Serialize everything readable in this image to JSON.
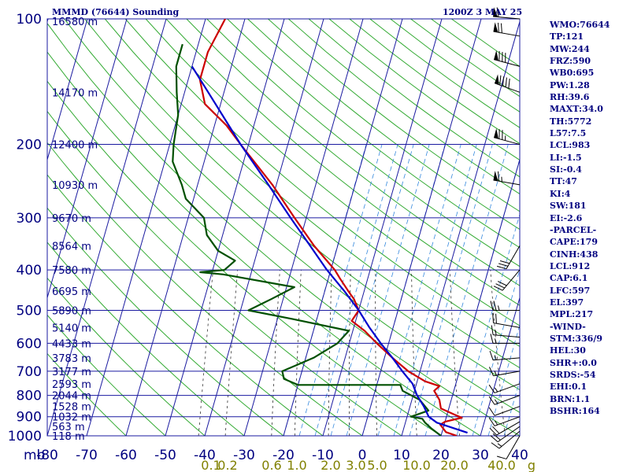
{
  "header": {
    "station_title": "MMMD (76644) Sounding",
    "valid_time": "1200Z  3 MAY 25"
  },
  "indices": [
    "WMO:76644",
    "TP:121",
    "MW:244",
    "FRZ:590",
    "WB0:695",
    "PW:1.28",
    "RH:39.6",
    "MAXT:34.0",
    "TH:5772",
    "L57:7.5",
    "LCL:983",
    "LI:-1.5",
    "SI:-0.4",
    "TT:47",
    "KI:4",
    "SW:181",
    "EI:-2.6",
    "-PARCEL-",
    "CAPE:179",
    "CINH:438",
    "LCL:912",
    "CAP:6.1",
    "LFC:597",
    "EL:397",
    "MPL:217",
    "-WIND-",
    "STM:336/9",
    "HEL:30",
    "SHR+:0.0",
    "SRDS:-54",
    "EHI:0.1",
    "BRN:1.1",
    "BSHR:164"
  ],
  "chart_data": {
    "type": "skew-t log-p",
    "pressure_label": "mb",
    "pressure_ticks": [
      100,
      200,
      300,
      400,
      500,
      600,
      700,
      800,
      900,
      1000
    ],
    "pressure_range": [
      100,
      1000
    ],
    "temperature_ticks": [
      -80,
      -70,
      -60,
      -50,
      -40,
      -30,
      -20,
      -10,
      0,
      10,
      20,
      30,
      40
    ],
    "temperature_range": [
      -80,
      40
    ],
    "mixing_ratio_labels": [
      "0.1",
      "0.2",
      "0.6",
      "1.0",
      "2.0",
      "3.0",
      "5.0",
      "10.0",
      "20.0",
      "40.0",
      "g"
    ],
    "height_labels": [
      {
        "p": 100,
        "label": "16580 m"
      },
      {
        "p": 150,
        "label": "14170 m"
      },
      {
        "p": 200,
        "label": "12400 m"
      },
      {
        "p": 250,
        "label": "10930 m"
      },
      {
        "p": 300,
        "label": "9670 m"
      },
      {
        "p": 350,
        "label": "8564 m"
      },
      {
        "p": 400,
        "label": "7580 m"
      },
      {
        "p": 450,
        "label": "6695 m"
      },
      {
        "p": 500,
        "label": "5890 m"
      },
      {
        "p": 550,
        "label": "5140 m"
      },
      {
        "p": 600,
        "label": "4433 m"
      },
      {
        "p": 650,
        "label": "3783 m"
      },
      {
        "p": 700,
        "label": "3177 m"
      },
      {
        "p": 750,
        "label": "2593 m"
      },
      {
        "p": 800,
        "label": "2044 m"
      },
      {
        "p": 850,
        "label": "1528 m"
      },
      {
        "p": 900,
        "label": "1032 m"
      },
      {
        "p": 950,
        "label": "563 m"
      },
      {
        "p": 1000,
        "label": "118 m"
      }
    ],
    "series": [
      {
        "role": "temperature",
        "color": "#cc0000",
        "points": [
          [
            1000,
            24
          ],
          [
            980,
            21
          ],
          [
            960,
            20
          ],
          [
            940,
            19
          ],
          [
            925,
            20
          ],
          [
            905,
            24
          ],
          [
            890,
            22
          ],
          [
            860,
            18
          ],
          [
            820,
            17
          ],
          [
            780,
            15
          ],
          [
            760,
            16
          ],
          [
            740,
            12
          ],
          [
            700,
            7
          ],
          [
            650,
            2
          ],
          [
            600,
            -3
          ],
          [
            560,
            -7
          ],
          [
            530,
            -11
          ],
          [
            500,
            -10
          ],
          [
            470,
            -12
          ],
          [
            450,
            -14
          ],
          [
            420,
            -17
          ],
          [
            400,
            -19
          ],
          [
            350,
            -26
          ],
          [
            300,
            -33
          ],
          [
            250,
            -41
          ],
          [
            200,
            -52
          ],
          [
            180,
            -57
          ],
          [
            160,
            -64
          ],
          [
            140,
            -67
          ],
          [
            120,
            -67
          ],
          [
            100,
            -65
          ]
        ]
      },
      {
        "role": "dewpoint",
        "color": "#005000",
        "points": [
          [
            1000,
            20
          ],
          [
            960,
            17
          ],
          [
            930,
            15
          ],
          [
            910,
            14
          ],
          [
            900,
            11
          ],
          [
            870,
            15
          ],
          [
            820,
            12
          ],
          [
            780,
            7
          ],
          [
            755,
            6
          ],
          [
            755,
            -20
          ],
          [
            730,
            -24
          ],
          [
            700,
            -25
          ],
          [
            650,
            -18
          ],
          [
            600,
            -13
          ],
          [
            560,
            -11
          ],
          [
            525,
            -26
          ],
          [
            500,
            -38
          ],
          [
            470,
            -33
          ],
          [
            440,
            -28
          ],
          [
            410,
            -47
          ],
          [
            405,
            -53
          ],
          [
            400,
            -47
          ],
          [
            380,
            -45
          ],
          [
            360,
            -50
          ],
          [
            330,
            -54
          ],
          [
            300,
            -56
          ],
          [
            270,
            -62
          ],
          [
            250,
            -64
          ],
          [
            220,
            -68
          ],
          [
            200,
            -69
          ],
          [
            170,
            -70
          ],
          [
            150,
            -72
          ],
          [
            130,
            -74
          ],
          [
            115,
            -74
          ]
        ]
      },
      {
        "role": "parcel",
        "color": "#0000cc",
        "points": [
          [
            983,
            26.5
          ],
          [
            930,
            18
          ],
          [
            900,
            15.5
          ],
          [
            850,
            13.5
          ],
          [
            800,
            11
          ],
          [
            750,
            9
          ],
          [
            700,
            5.5
          ],
          [
            650,
            2
          ],
          [
            600,
            -2
          ],
          [
            550,
            -6
          ],
          [
            500,
            -10
          ],
          [
            450,
            -15
          ],
          [
            400,
            -21
          ],
          [
            350,
            -27
          ],
          [
            300,
            -34
          ],
          [
            250,
            -42
          ],
          [
            200,
            -52
          ],
          [
            150,
            -64
          ],
          [
            130,
            -70
          ]
        ]
      }
    ],
    "wind_barbs": [
      {
        "p": 1000,
        "dir": 210,
        "spd": 10
      },
      {
        "p": 975,
        "dir": 230,
        "spd": 15
      },
      {
        "p": 950,
        "dir": 235,
        "spd": 20
      },
      {
        "p": 925,
        "dir": 240,
        "spd": 20
      },
      {
        "p": 900,
        "dir": 250,
        "spd": 15
      },
      {
        "p": 850,
        "dir": 250,
        "spd": 10
      },
      {
        "p": 800,
        "dir": 250,
        "spd": 15
      },
      {
        "p": 750,
        "dir": 250,
        "spd": 15
      },
      {
        "p": 700,
        "dir": 260,
        "spd": 15
      },
      {
        "p": 650,
        "dir": 265,
        "spd": 15
      },
      {
        "p": 600,
        "dir": 270,
        "spd": 15
      },
      {
        "p": 580,
        "dir": 275,
        "spd": 15
      },
      {
        "p": 550,
        "dir": 280,
        "spd": 20
      },
      {
        "p": 500,
        "dir": 270,
        "spd": 25
      },
      {
        "p": 400,
        "dir": 220,
        "spd": 30
      },
      {
        "p": 350,
        "dir": 210,
        "spd": 30
      },
      {
        "p": 250,
        "dir": 280,
        "spd": 65
      },
      {
        "p": 200,
        "dir": 285,
        "spd": 75
      },
      {
        "p": 150,
        "dir": 290,
        "spd": 90
      },
      {
        "p": 130,
        "dir": 285,
        "spd": 80
      },
      {
        "p": 110,
        "dir": 280,
        "spd": 70
      },
      {
        "p": 100,
        "dir": 275,
        "spd": 60
      }
    ],
    "colors": {
      "grid": "#1a1aa0",
      "dry_adiabat": "#33aa33",
      "moist_adiabat": "#3388dd",
      "mixing_ratio": "#333333",
      "labels": "#000080",
      "mixing_labels": "#808000"
    }
  }
}
